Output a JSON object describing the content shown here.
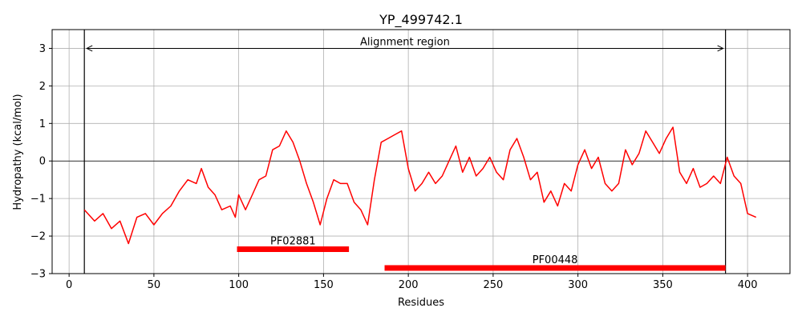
{
  "chart_data": {
    "type": "line",
    "title": "YP_499742.1",
    "xlabel": "Residues",
    "ylabel": "Hydropathy (kcal/mol)",
    "xlim": [
      -10,
      425
    ],
    "ylim": [
      -3,
      3.5
    ],
    "x_ticks": [
      0,
      50,
      100,
      150,
      200,
      250,
      300,
      350,
      400
    ],
    "y_ticks": [
      -3,
      -2,
      -1,
      0,
      1,
      2,
      3
    ],
    "x_tick_labels": [
      "0",
      "50",
      "100",
      "150",
      "200",
      "250",
      "300",
      "350",
      "400"
    ],
    "y_tick_labels": [
      "−3",
      "−2",
      "−1",
      "0",
      "1",
      "2",
      "3"
    ],
    "grid": true,
    "series": [
      {
        "color": "#ff0000",
        "x": [
          9,
          15,
          20,
          25,
          30,
          35,
          40,
          45,
          50,
          55,
          60,
          65,
          70,
          75,
          78,
          82,
          86,
          90,
          95,
          98,
          100,
          104,
          108,
          112,
          116,
          120,
          124,
          128,
          132,
          136,
          140,
          144,
          148,
          152,
          156,
          160,
          164,
          168,
          172,
          176,
          180,
          184,
          188,
          192,
          196,
          200,
          204,
          208,
          212,
          216,
          220,
          224,
          228,
          232,
          236,
          240,
          244,
          248,
          252,
          256,
          260,
          264,
          268,
          272,
          276,
          280,
          284,
          288,
          292,
          296,
          300,
          304,
          308,
          312,
          316,
          320,
          324,
          328,
          332,
          336,
          340,
          344,
          348,
          352,
          356,
          360,
          364,
          368,
          372,
          376,
          380,
          384,
          388,
          392,
          396,
          400,
          405
        ],
        "y": [
          -1.3,
          -1.6,
          -1.4,
          -1.8,
          -1.6,
          -2.2,
          -1.5,
          -1.4,
          -1.7,
          -1.4,
          -1.2,
          -0.8,
          -0.5,
          -0.6,
          -0.2,
          -0.7,
          -0.9,
          -1.3,
          -1.2,
          -1.5,
          -0.9,
          -1.3,
          -0.9,
          -0.5,
          -0.4,
          0.3,
          0.4,
          0.8,
          0.5,
          0.0,
          -0.6,
          -1.1,
          -1.7,
          -1.0,
          -0.5,
          -0.6,
          -0.6,
          -1.1,
          -1.3,
          -1.7,
          -0.5,
          0.5,
          0.6,
          0.7,
          0.8,
          -0.2,
          -0.8,
          -0.6,
          -0.3,
          -0.6,
          -0.4,
          0.0,
          0.4,
          -0.3,
          0.1,
          -0.4,
          -0.2,
          0.1,
          -0.3,
          -0.5,
          0.3,
          0.6,
          0.1,
          -0.5,
          -0.3,
          -1.1,
          -0.8,
          -1.2,
          -0.6,
          -0.8,
          -0.1,
          0.3,
          -0.2,
          0.1,
          -0.6,
          -0.8,
          -0.6,
          0.3,
          -0.1,
          0.2,
          0.8,
          0.5,
          0.2,
          0.6,
          0.9,
          -0.3,
          -0.6,
          -0.2,
          -0.7,
          -0.6,
          -0.4,
          -0.6,
          0.1,
          -0.4,
          -0.6,
          -1.4,
          -1.5
        ]
      }
    ],
    "vlines": [
      9,
      387
    ],
    "alignment": {
      "label": "Alignment region",
      "x_start": 9,
      "x_end": 387,
      "y": 3.0
    },
    "domains": [
      {
        "name": "PF02881",
        "start": 99,
        "end": 165,
        "y": -2.35
      },
      {
        "name": "PF00448",
        "start": 186,
        "end": 387,
        "y": -2.85
      }
    ]
  }
}
